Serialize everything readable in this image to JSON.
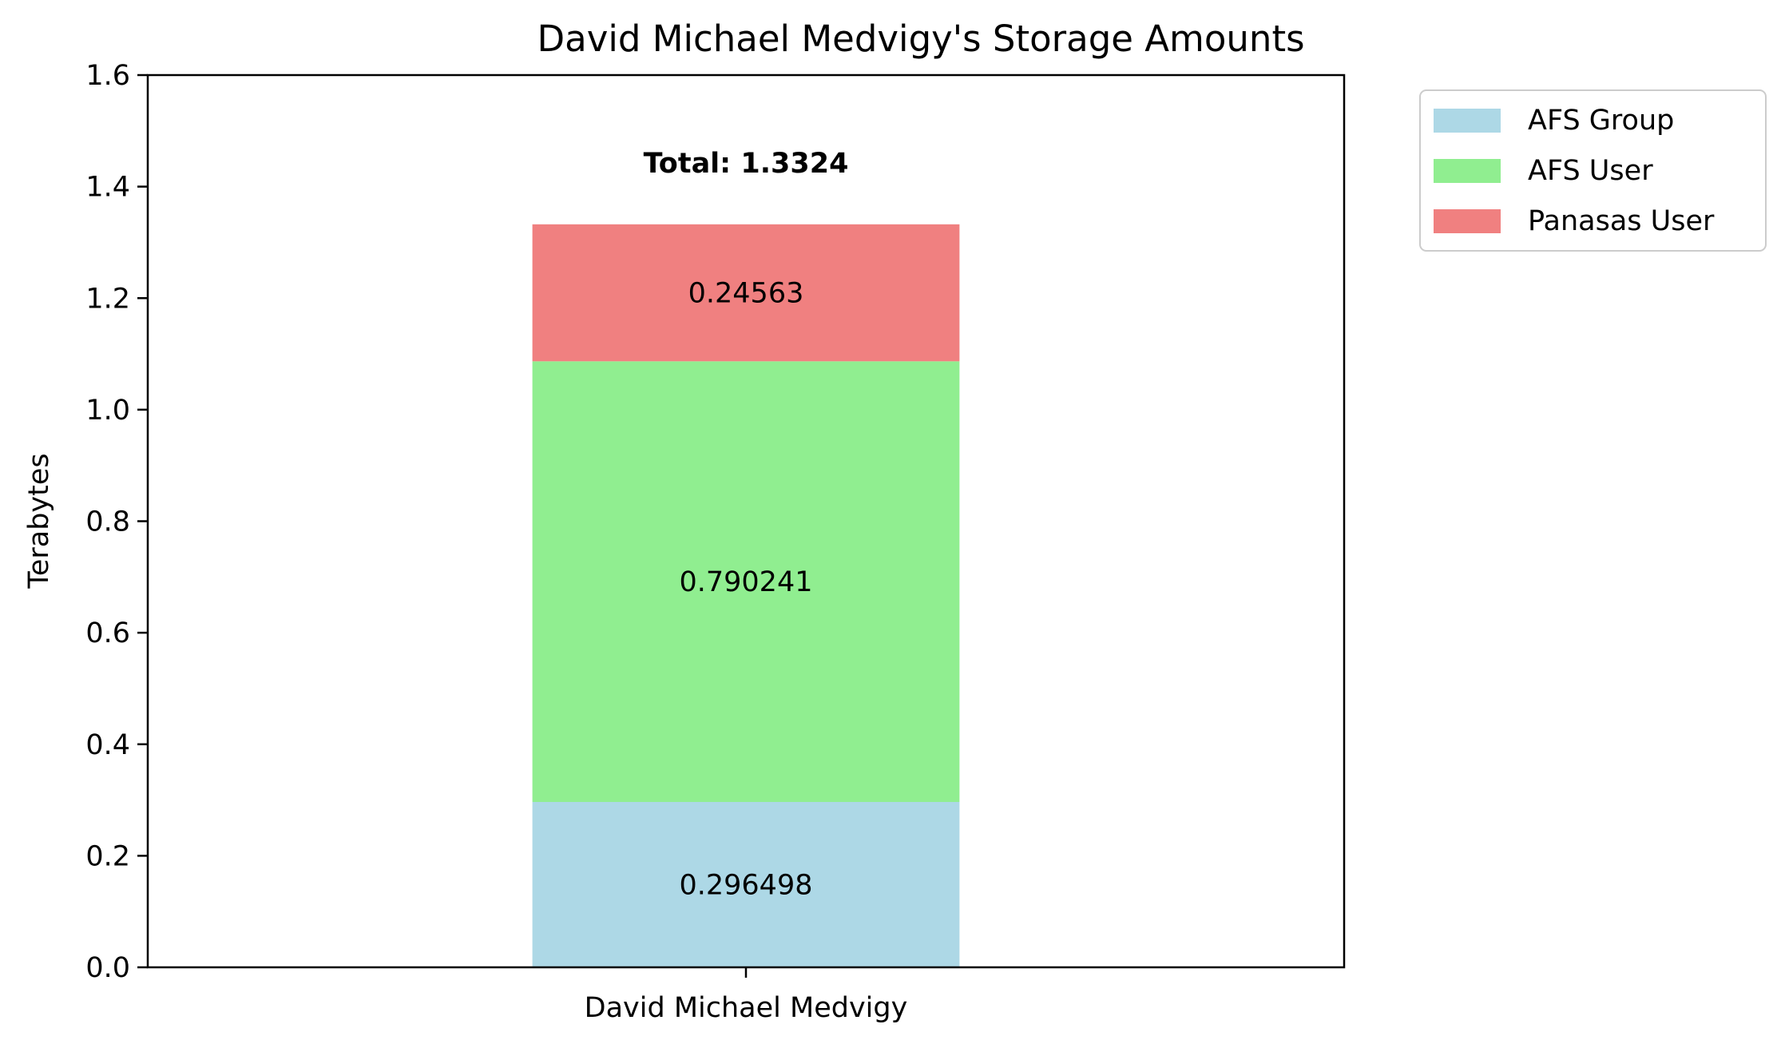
{
  "chart_data": {
    "type": "bar",
    "stacked": true,
    "title": "David Michael Medvigy's Storage Amounts",
    "xlabel": "",
    "ylabel": "Terabytes",
    "categories": [
      "David Michael Medvigy"
    ],
    "ylim": [
      0,
      1.6
    ],
    "yticks": [
      "0.0",
      "0.2",
      "0.4",
      "0.6",
      "0.8",
      "1.0",
      "1.2",
      "1.4",
      "1.6"
    ],
    "series": [
      {
        "name": "AFS Group",
        "values": [
          0.296498
        ],
        "label": "0.296498",
        "color": "#add8e6"
      },
      {
        "name": "AFS User",
        "values": [
          0.790241
        ],
        "label": "0.790241",
        "color": "#90ee90"
      },
      {
        "name": "Panasas User",
        "values": [
          0.24563
        ],
        "label": "0.24563",
        "color": "#f08080"
      }
    ],
    "total_labels": [
      "Total: 1.3324"
    ],
    "legend_position": "outside-top-right",
    "grid": false
  }
}
